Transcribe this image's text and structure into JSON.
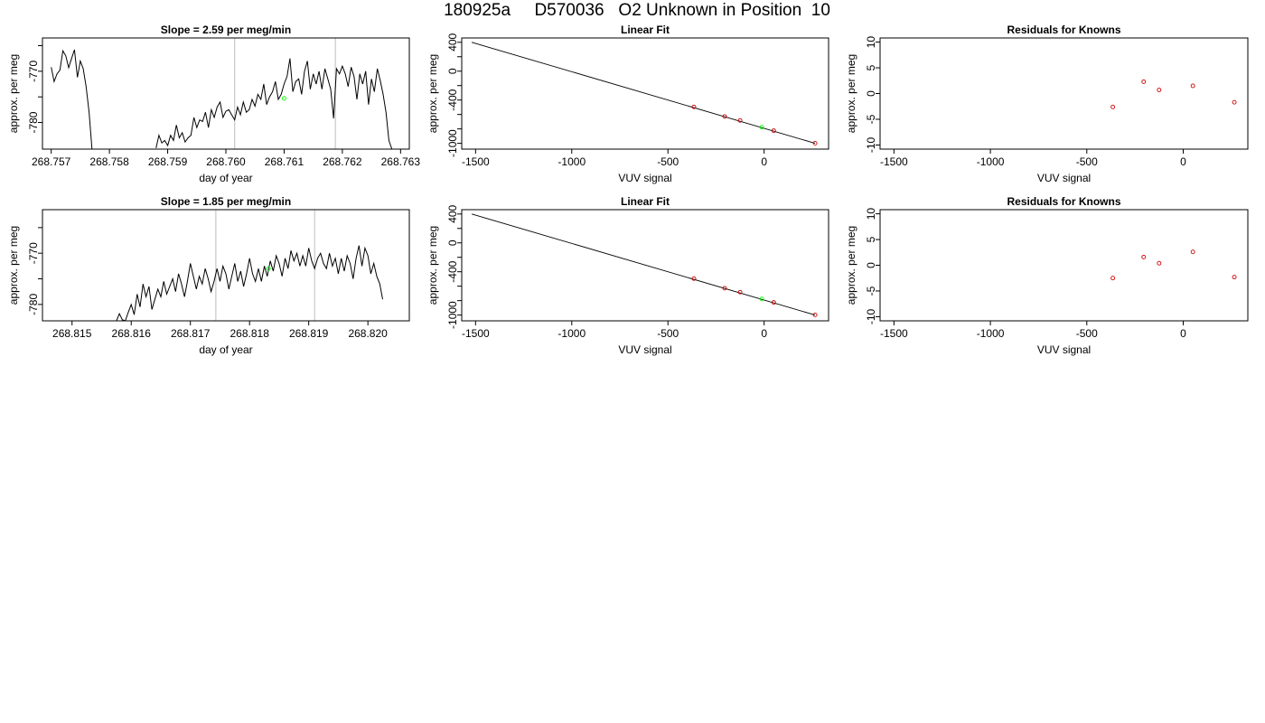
{
  "page": {
    "title": "180925a     D570036   O2 Unknown in Position  10"
  },
  "chart_data": [
    {
      "id": "ts1",
      "type": "line",
      "title": "Slope =  2.59  per meg/min",
      "xlabel": "day of year",
      "ylabel": "approx. per meg",
      "xlim": [
        268.75685,
        268.76315
      ],
      "ylim": [
        -785.2,
        -763.5
      ],
      "xticks": [
        268.757,
        268.758,
        268.759,
        268.76,
        268.761,
        268.762,
        268.763
      ],
      "xtick_labels": [
        "268.757",
        "268.758",
        "268.759",
        "268.760",
        "268.761",
        "268.762",
        "268.763"
      ],
      "yticks": [
        -780,
        -775,
        -770,
        -765
      ],
      "ytick_labels": [
        "-780",
        "",
        "-770",
        ""
      ],
      "vlines": [
        268.76015,
        268.76188
      ],
      "series": [
        {
          "x": [
            268.757,
            268.75705,
            268.7571,
            268.75715,
            268.7572,
            268.75725,
            268.7573,
            268.75735,
            268.7574,
            268.75745,
            268.7575,
            268.75755,
            268.7576,
            268.75765,
            268.7577,
            268.75775,
            268.7578,
            268.75785,
            268.7579,
            268.75795,
            268.758
          ],
          "y": [
            -769.2,
            -772.0,
            -770.5,
            -769.8,
            -766.0,
            -767.0,
            -769.3,
            -767.5,
            -765.8,
            -771.2,
            -768.0,
            -769.5,
            -773.0,
            -778.0,
            -785.2,
            -785.2,
            -785.2,
            -785.2,
            -785.2,
            -785.2,
            -785.2
          ]
        },
        {
          "x": [
            268.7588,
            268.75885,
            268.7589,
            268.75895,
            268.759,
            268.75905,
            268.7591,
            268.75915,
            268.7592,
            268.75925,
            268.7593,
            268.75935,
            268.7594,
            268.75945,
            268.7595,
            268.75955,
            268.7596,
            268.75965,
            268.7597,
            268.75975,
            268.7598,
            268.75985,
            268.7599,
            268.75995,
            268.76,
            268.76005,
            268.7601,
            268.76015,
            268.7602,
            268.76025,
            268.7603,
            268.76035,
            268.7604,
            268.76045,
            268.7605,
            268.76055,
            268.7606,
            268.76065,
            268.7607,
            268.76075,
            268.7608,
            268.76085,
            268.7609,
            268.76095,
            268.761,
            268.76105,
            268.7611,
            268.76115,
            268.7612,
            268.76125,
            268.7613,
            268.76135,
            268.7614,
            268.76145,
            268.7615,
            268.76155,
            268.7616,
            268.76165,
            268.7617,
            268.76175,
            268.7618,
            268.76185,
            268.7619,
            268.76195,
            268.762,
            268.76205,
            268.7621,
            268.76215,
            268.7622,
            268.76225,
            268.7623,
            268.76235,
            268.7624,
            268.76245,
            268.7625,
            268.76255,
            268.7626,
            268.76265,
            268.7627,
            268.76275,
            268.7628,
            268.76285
          ],
          "y": [
            -785.0,
            -782.5,
            -784.0,
            -783.5,
            -784.5,
            -782.5,
            -783.5,
            -780.5,
            -783.0,
            -782.0,
            -783.8,
            -783.0,
            -782.5,
            -779.0,
            -781.0,
            -779.5,
            -779.8,
            -778.0,
            -781.0,
            -777.5,
            -779.0,
            -777.0,
            -776.0,
            -779.0,
            -777.8,
            -777.5,
            -778.5,
            -779.5,
            -777.0,
            -778.5,
            -776.0,
            -778.0,
            -777.5,
            -775.5,
            -776.8,
            -774.5,
            -775.5,
            -772.5,
            -776.5,
            -775.0,
            -774.0,
            -772.0,
            -775.5,
            -774.5,
            -772.5,
            -771.0,
            -767.5,
            -774.0,
            -772.0,
            -771.5,
            -774.5,
            -770.0,
            -768.0,
            -773.5,
            -770.5,
            -772.5,
            -770.0,
            -773.5,
            -769.5,
            -771.5,
            -773.5,
            -779.2,
            -769.5,
            -770.5,
            -769.0,
            -770.5,
            -773.0,
            -769.2,
            -771.0,
            -775.5,
            -770.5,
            -772.5,
            -770.0,
            -776.5,
            -771.5,
            -774.0,
            -769.5,
            -771.8,
            -774.5,
            -778.0,
            -783.5,
            -785.2
          ]
        }
      ],
      "marker": {
        "x": 268.761,
        "y": -775.3,
        "color": "#00ff00"
      }
    },
    {
      "id": "fit1",
      "type": "line",
      "title": "Linear Fit",
      "xlabel": "VUV signal",
      "ylabel": "approx. per meg",
      "xlim": [
        -1572,
        335
      ],
      "ylim": [
        -1080,
        460
      ],
      "xticks": [
        -1500,
        -1000,
        -500,
        0
      ],
      "xtick_labels": [
        "-1500",
        "-1000",
        "-500",
        "0"
      ],
      "yticks": [
        400,
        200,
        0,
        -200,
        -400,
        -600,
        -800,
        -1000
      ],
      "ytick_labels": [
        "400",
        "",
        "0",
        "",
        "-400",
        "",
        "",
        "-1000"
      ],
      "line": {
        "x": [
          -1520,
          265
        ],
        "y": [
          400,
          -1000
        ]
      },
      "points": {
        "x": [
          -365,
          -205,
          -125,
          50,
          265
        ],
        "y": [
          -495,
          -628,
          -683,
          -825,
          -998
        ],
        "color": "#cc0000"
      },
      "marker": {
        "x": -12,
        "y": -776,
        "color": "#00ff00"
      }
    },
    {
      "id": "res1",
      "type": "scatter",
      "title": "Residuals for Knowns",
      "xlabel": "VUV signal",
      "ylabel": "approx. per meg",
      "xlim": [
        -1572,
        335
      ],
      "ylim": [
        -10.8,
        10.8
      ],
      "xticks": [
        -1500,
        -1000,
        -500,
        0
      ],
      "xtick_labels": [
        "-1500",
        "-1000",
        "-500",
        "0"
      ],
      "yticks": [
        10,
        5,
        0,
        -5,
        -10
      ],
      "ytick_labels": [
        "10",
        "5",
        "0",
        "-5",
        "-10"
      ],
      "points": {
        "x": [
          -365,
          -205,
          -125,
          50,
          265
        ],
        "y": [
          -2.6,
          2.3,
          0.7,
          1.5,
          -1.7
        ],
        "color": "#cc0000"
      }
    },
    {
      "id": "ts2",
      "type": "line",
      "title": "Slope =  1.85  per meg/min",
      "xlabel": "day of year",
      "ylabel": "approx. per meg",
      "xlim": [
        268.8145,
        268.8207
      ],
      "ylim": [
        -783.2,
        -761.5
      ],
      "xticks": [
        268.815,
        268.816,
        268.817,
        268.818,
        268.819,
        268.82
      ],
      "xtick_labels": [
        "268.815",
        "268.816",
        "268.817",
        "268.818",
        "268.819",
        "268.820"
      ],
      "yticks": [
        -780,
        -775,
        -770,
        -765
      ],
      "ytick_labels": [
        "-780",
        "",
        "-770",
        ""
      ],
      "vlines": [
        268.81743,
        268.8191
      ],
      "series": [
        {
          "x": [
            268.81575,
            268.8158,
            268.81585,
            268.8159,
            268.81595,
            268.816,
            268.81605,
            268.8161,
            268.81615,
            268.8162,
            268.81625,
            268.8163,
            268.81635,
            268.8164,
            268.81645,
            268.8165,
            268.81655,
            268.8166,
            268.81665,
            268.8167,
            268.81675,
            268.8168,
            268.81685,
            268.8169,
            268.81695,
            268.817,
            268.81705,
            268.8171,
            268.81715,
            268.8172,
            268.81725,
            268.8173,
            268.81735,
            268.8174,
            268.81745,
            268.8175,
            268.81755,
            268.8176,
            268.81765,
            268.8177,
            268.81775,
            268.8178,
            268.81785,
            268.8179,
            268.81795,
            268.818,
            268.81805,
            268.8181,
            268.81815,
            268.8182,
            268.81825,
            268.8183,
            268.81835,
            268.8184,
            268.81845,
            268.8185,
            268.81855,
            268.8186,
            268.81865,
            268.8187,
            268.81875,
            268.8188,
            268.81885,
            268.8189,
            268.81895,
            268.819,
            268.81905,
            268.8191,
            268.81915,
            268.8192,
            268.81925,
            268.8193,
            268.81935,
            268.8194,
            268.81945,
            268.8195,
            268.81955,
            268.8196,
            268.81965,
            268.8197,
            268.81975,
            268.8198,
            268.81985,
            268.8199,
            268.81995,
            268.82,
            268.82005,
            268.8201,
            268.82015,
            268.8202,
            268.82025
          ],
          "y": [
            -783.2,
            -781.8,
            -783.0,
            -783.2,
            -781.5,
            -780.0,
            -782.0,
            -778.0,
            -780.5,
            -776.0,
            -778.5,
            -776.5,
            -781.0,
            -779.0,
            -777.0,
            -778.5,
            -775.5,
            -778.0,
            -776.5,
            -775.0,
            -777.5,
            -774.0,
            -776.0,
            -778.5,
            -775.5,
            -772.0,
            -774.5,
            -777.0,
            -774.5,
            -776.0,
            -773.0,
            -775.0,
            -777.5,
            -775.5,
            -773.0,
            -775.5,
            -772.5,
            -774.0,
            -777.0,
            -774.5,
            -772.0,
            -775.5,
            -773.5,
            -776.5,
            -774.0,
            -771.0,
            -774.0,
            -775.5,
            -773.0,
            -775.5,
            -772.5,
            -774.5,
            -771.5,
            -773.5,
            -770.5,
            -772.0,
            -774.5,
            -771.0,
            -773.0,
            -769.5,
            -771.5,
            -770.0,
            -772.5,
            -770.5,
            -772.5,
            -769.0,
            -771.5,
            -773.0,
            -771.0,
            -770.0,
            -772.0,
            -773.0,
            -770.0,
            -772.5,
            -771.0,
            -774.0,
            -771.0,
            -773.5,
            -770.5,
            -772.0,
            -775.0,
            -771.0,
            -768.5,
            -772.5,
            -769.0,
            -770.5,
            -774.0,
            -772.0,
            -774.5,
            -776.0,
            -779.0
          ]
        }
      ],
      "marker": {
        "x": 268.81832,
        "y": -773.0,
        "color": "#00ff00"
      }
    },
    {
      "id": "fit2",
      "type": "line",
      "title": "Linear Fit",
      "xlabel": "VUV signal",
      "ylabel": "approx. per meg",
      "xlim": [
        -1572,
        335
      ],
      "ylim": [
        -1080,
        460
      ],
      "xticks": [
        -1500,
        -1000,
        -500,
        0
      ],
      "xtick_labels": [
        "-1500",
        "-1000",
        "-500",
        "0"
      ],
      "yticks": [
        400,
        200,
        0,
        -200,
        -400,
        -600,
        -800,
        -1000
      ],
      "ytick_labels": [
        "400",
        "",
        "0",
        "",
        "-400",
        "",
        "",
        "-1000"
      ],
      "line": {
        "x": [
          -1520,
          265
        ],
        "y": [
          400,
          -1000
        ]
      },
      "points": {
        "x": [
          -365,
          -205,
          -125,
          50,
          265
        ],
        "y": [
          -495,
          -628,
          -683,
          -825,
          -998
        ],
        "color": "#cc0000"
      },
      "marker": {
        "x": -12,
        "y": -776,
        "color": "#00ff00"
      }
    },
    {
      "id": "res2",
      "type": "scatter",
      "title": "Residuals for Knowns",
      "xlabel": "VUV signal",
      "ylabel": "approx. per meg",
      "xlim": [
        -1572,
        335
      ],
      "ylim": [
        -10.8,
        10.8
      ],
      "xticks": [
        -1500,
        -1000,
        -500,
        0
      ],
      "xtick_labels": [
        "-1500",
        "-1000",
        "-500",
        "0"
      ],
      "yticks": [
        10,
        5,
        0,
        -5,
        -10
      ],
      "ytick_labels": [
        "10",
        "5",
        "0",
        "-5",
        "-10"
      ],
      "points": {
        "x": [
          -365,
          -205,
          -125,
          50,
          265
        ],
        "y": [
          -2.5,
          1.6,
          0.4,
          2.6,
          -2.3
        ],
        "color": "#cc0000"
      }
    }
  ]
}
